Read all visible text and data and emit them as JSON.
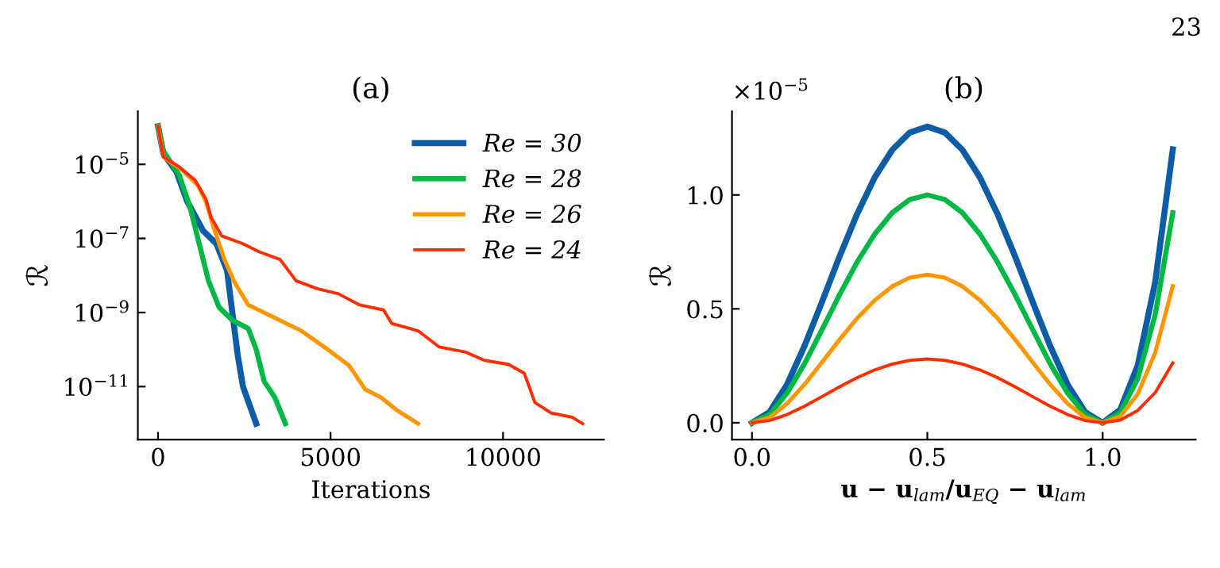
{
  "chart_data": [
    {
      "type": "line",
      "title": "(a)",
      "xlabel": "Iterations",
      "ylabel": "ℛ",
      "log": "y",
      "legend": "top right",
      "grid": false,
      "xlim": [
        -585,
        12923
      ],
      "xticks": [
        0,
        5000,
        10000
      ],
      "ylim": [
        3.7e-13,
        0.00027
      ],
      "yticks": [
        {
          "value": 1e-05,
          "label": "10$^{−5}$"
        },
        {
          "value": 1e-07,
          "label": "10$^{−7}$"
        },
        {
          "value": 1e-09,
          "label": "10$^{−9}$"
        },
        {
          "value": 1e-11,
          "label": "10$^{−11}$"
        }
      ],
      "series": [
        {
          "name": "Re = 30",
          "color": "#0c5da5",
          "x": [
            0,
            154,
            538,
            846,
            1308,
            1692,
            2000,
            2154,
            2308,
            2462,
            2846
          ],
          "values": [
            0.000107,
            1.95e-05,
            6.2e-06,
            1e-06,
            1.6e-07,
            7.2e-08,
            1.38e-08,
            1e-09,
            7.2e-11,
            1e-11,
            1e-12
          ]
        },
        {
          "name": "Re = 28",
          "color": "#00b945",
          "x": [
            0,
            154,
            615,
            923,
            1154,
            1462,
            1769,
            2154,
            2615,
            2846,
            3077,
            3385,
            3692
          ],
          "values": [
            0.000107,
            2.3e-05,
            5.1e-06,
            7.2e-07,
            1e-07,
            7.2e-09,
            1.38e-09,
            6.2e-10,
            3.7e-10,
            1e-10,
            1.38e-11,
            5.1e-12,
            1e-12
          ]
        },
        {
          "name": "Re = 26",
          "color": "#ff9500",
          "x": [
            0,
            154,
            692,
            1154,
            1385,
            1615,
            1923,
            2231,
            2615,
            3385,
            4154,
            4923,
            5538,
            6000,
            6462,
            6923,
            7538
          ],
          "values": [
            0.000107,
            1.6e-05,
            7.2e-06,
            2.7e-06,
            1e-06,
            1.95e-07,
            2.7e-08,
            6.2e-09,
            1.6e-09,
            7.2e-10,
            3.2e-10,
            1e-10,
            3.7e-11,
            8.5e-12,
            5.1e-12,
            2.3e-12,
            1e-12
          ]
        },
        {
          "name": "Re = 24",
          "color": "#ff2c00",
          "x": [
            0,
            154,
            615,
            1077,
            1385,
            1538,
            1846,
            2462,
            2923,
            3538,
            4000,
            4615,
            5231,
            5846,
            6538,
            6769,
            7538,
            8154,
            8923,
            9462,
            10154,
            10615,
            10923,
            11385,
            12000,
            12308
          ],
          "values": [
            0.000107,
            1.6e-05,
            8.5e-06,
            3.7e-06,
            1.17e-06,
            3.7e-07,
            1.17e-07,
            7.2e-08,
            4.4e-08,
            2.7e-08,
            7.2e-09,
            4.4e-09,
            3.2e-09,
            1.6e-09,
            1.17e-09,
            5.1e-10,
            3.2e-10,
            1.17e-10,
            8.5e-11,
            5.1e-11,
            4e-11,
            2.3e-11,
            3.7e-12,
            1.95e-12,
            1.5e-12,
            1e-12
          ]
        }
      ]
    },
    {
      "type": "line",
      "title": "(b)",
      "xlabel": "u − u$_{lam}$/u$_{EQ}$ − u$_{lam}$",
      "ylabel": "ℛ",
      "grid": false,
      "annotations": [
        "×10$^{−5}$",
        "23"
      ],
      "xlim": [
        -0.057,
        1.265
      ],
      "xticks": [
        {
          "value": 0,
          "label": "0.0"
        },
        0.5,
        {
          "value": 1,
          "label": "1.0"
        }
      ],
      "ylim": [
        -0.074,
        1.367
      ],
      "yticks": [
        {
          "value": 0,
          "label": "0.0"
        },
        0.5,
        {
          "value": 1,
          "label": "1.0"
        }
      ],
      "x": [
        0,
        0.05,
        0.1,
        0.15,
        0.2,
        0.25,
        0.3,
        0.35,
        0.4,
        0.45,
        0.5,
        0.55,
        0.6,
        0.65,
        0.7,
        0.75,
        0.8,
        0.85,
        0.9,
        0.95,
        1.0,
        1.05,
        1.1,
        1.15,
        1.2
      ],
      "series": [
        {
          "color": "#0c5da5",
          "values": [
            0,
            0.047,
            0.168,
            0.338,
            0.532,
            0.731,
            0.917,
            1.077,
            1.198,
            1.274,
            1.3,
            1.274,
            1.198,
            1.077,
            0.917,
            0.731,
            0.532,
            0.338,
            0.168,
            0.047,
            0,
            0.057,
            0.252,
            0.619,
            1.2
          ]
        },
        {
          "color": "#00b945",
          "values": [
            0,
            0.036,
            0.13,
            0.26,
            0.41,
            0.563,
            0.706,
            0.828,
            0.922,
            0.98,
            1.0,
            0.98,
            0.922,
            0.828,
            0.706,
            0.563,
            0.41,
            0.26,
            0.13,
            0.036,
            0,
            0.044,
            0.194,
            0.476,
            0.922
          ]
        },
        {
          "color": "#ff9500",
          "values": [
            0,
            0.023,
            0.084,
            0.169,
            0.266,
            0.366,
            0.459,
            0.538,
            0.599,
            0.637,
            0.65,
            0.637,
            0.599,
            0.538,
            0.459,
            0.366,
            0.266,
            0.169,
            0.084,
            0.023,
            0,
            0.029,
            0.126,
            0.309,
            0.6
          ]
        },
        {
          "color": "#ff2c00",
          "values": [
            0,
            0.01,
            0.036,
            0.073,
            0.115,
            0.158,
            0.198,
            0.232,
            0.258,
            0.274,
            0.28,
            0.274,
            0.258,
            0.232,
            0.198,
            0.158,
            0.115,
            0.073,
            0.036,
            0.01,
            0,
            0.012,
            0.054,
            0.133,
            0.263
          ]
        }
      ]
    }
  ]
}
